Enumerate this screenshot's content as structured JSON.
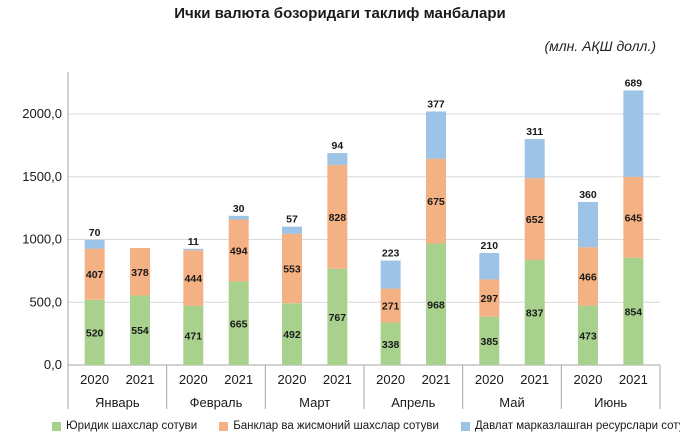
{
  "chart_data": {
    "type": "bar",
    "stacked": true,
    "title": "Ички валюта бозоридаги таклиф манбалари",
    "units": "(млн. АҚШ долл.)",
    "ylim": [
      0,
      2200
    ],
    "yticks": [
      "0,0",
      "500,0",
      "1000,0",
      "1500,0",
      "2000,0"
    ],
    "ytick_values": [
      0,
      500,
      1000,
      1500,
      2000
    ],
    "months": [
      "Январь",
      "Февраль",
      "Март",
      "Апрель",
      "Май",
      "Июнь"
    ],
    "years": [
      "2020",
      "2021",
      "2020",
      "2021",
      "2020",
      "2021",
      "2020",
      "2021",
      "2020",
      "2021",
      "2020",
      "2021"
    ],
    "series": [
      {
        "name": "Юридик шахслар сотуви",
        "color": "#a9d18e",
        "values": [
          520,
          554,
          471,
          665,
          492,
          767,
          338,
          968,
          385,
          837,
          473,
          854
        ]
      },
      {
        "name": "Банклар ва жисмоний шахслар сотуви",
        "color": "#f4b183",
        "values": [
          407,
          378,
          444,
          494,
          553,
          828,
          271,
          675,
          297,
          652,
          466,
          645
        ]
      },
      {
        "name": "Давлат марказлашган ресурслари сотуви",
        "color": "#9dc3e6",
        "values": [
          70,
          null,
          11,
          30,
          57,
          94,
          223,
          377,
          210,
          311,
          360,
          689
        ]
      }
    ]
  }
}
